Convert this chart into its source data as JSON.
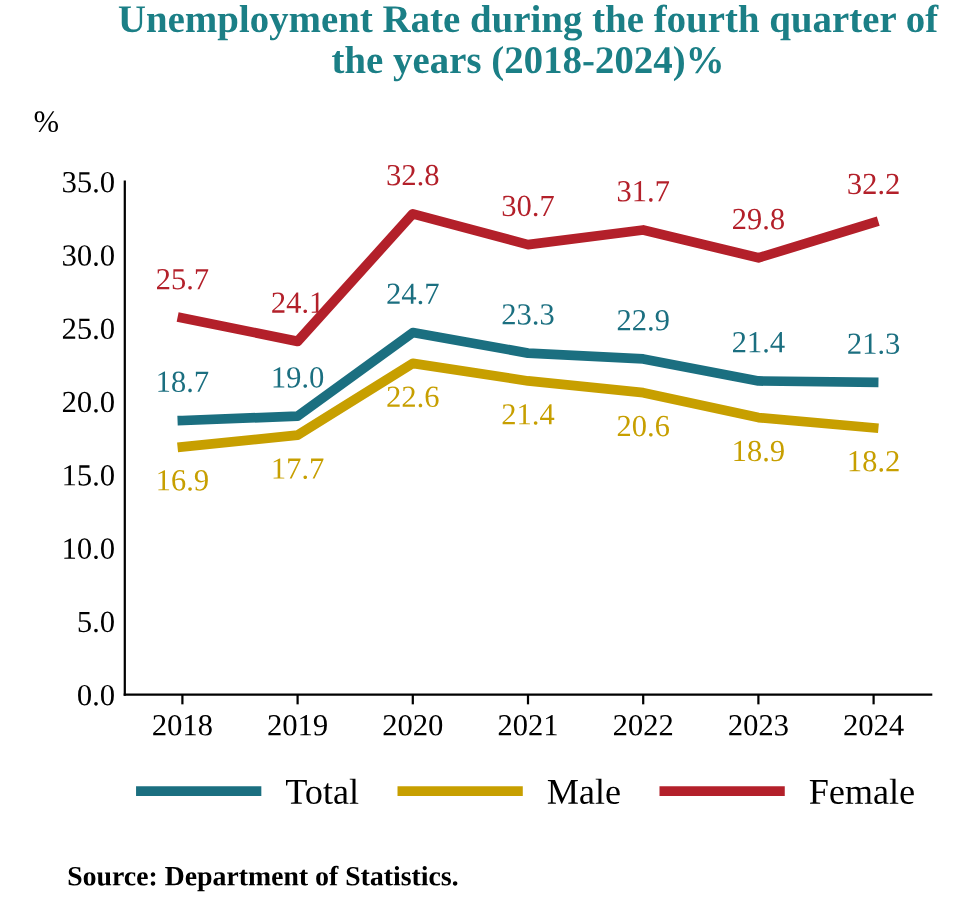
{
  "chart_data": {
    "type": "line",
    "title": "Unemployment Rate during the fourth quarter of the years (2018-2024)%",
    "ylabel": "%",
    "categories": [
      "2018",
      "2019",
      "2020",
      "2021",
      "2022",
      "2023",
      "2024"
    ],
    "series": [
      {
        "name": "Total",
        "color": "#1b6f80",
        "values": [
          18.7,
          19.0,
          24.7,
          23.3,
          22.9,
          21.4,
          21.3
        ],
        "value_labels": [
          "18.7",
          "19.0",
          "24.7",
          "23.3",
          "22.9",
          "21.4",
          "21.3"
        ]
      },
      {
        "name": "Male",
        "color": "#c79f00",
        "values": [
          16.9,
          17.7,
          22.6,
          21.4,
          20.6,
          18.9,
          18.2
        ],
        "value_labels": [
          "16.9",
          "17.7",
          "22.6",
          "21.4",
          "20.6",
          "18.9",
          "18.2"
        ]
      },
      {
        "name": "Female",
        "color": "#b3202a",
        "values": [
          25.7,
          24.1,
          32.8,
          30.7,
          31.7,
          29.8,
          32.2
        ],
        "value_labels": [
          "25.7",
          "24.1",
          "32.8",
          "30.7",
          "31.7",
          "29.8",
          "32.2"
        ]
      }
    ],
    "ylim": [
      0,
      35
    ],
    "yticks": [
      {
        "value": 0,
        "label": "0.0"
      },
      {
        "value": 5,
        "label": "5.0"
      },
      {
        "value": 10,
        "label": "10.0"
      },
      {
        "value": 15,
        "label": "15.0"
      },
      {
        "value": 20,
        "label": "20.0"
      },
      {
        "value": 25,
        "label": "25.0"
      },
      {
        "value": 30,
        "label": "30.0"
      },
      {
        "value": 35,
        "label": "35.0"
      }
    ],
    "grid": false,
    "legend": "bottom",
    "marker": "none",
    "line_style": "solid",
    "annotations": [
      "Source: Department of Statistics."
    ]
  }
}
